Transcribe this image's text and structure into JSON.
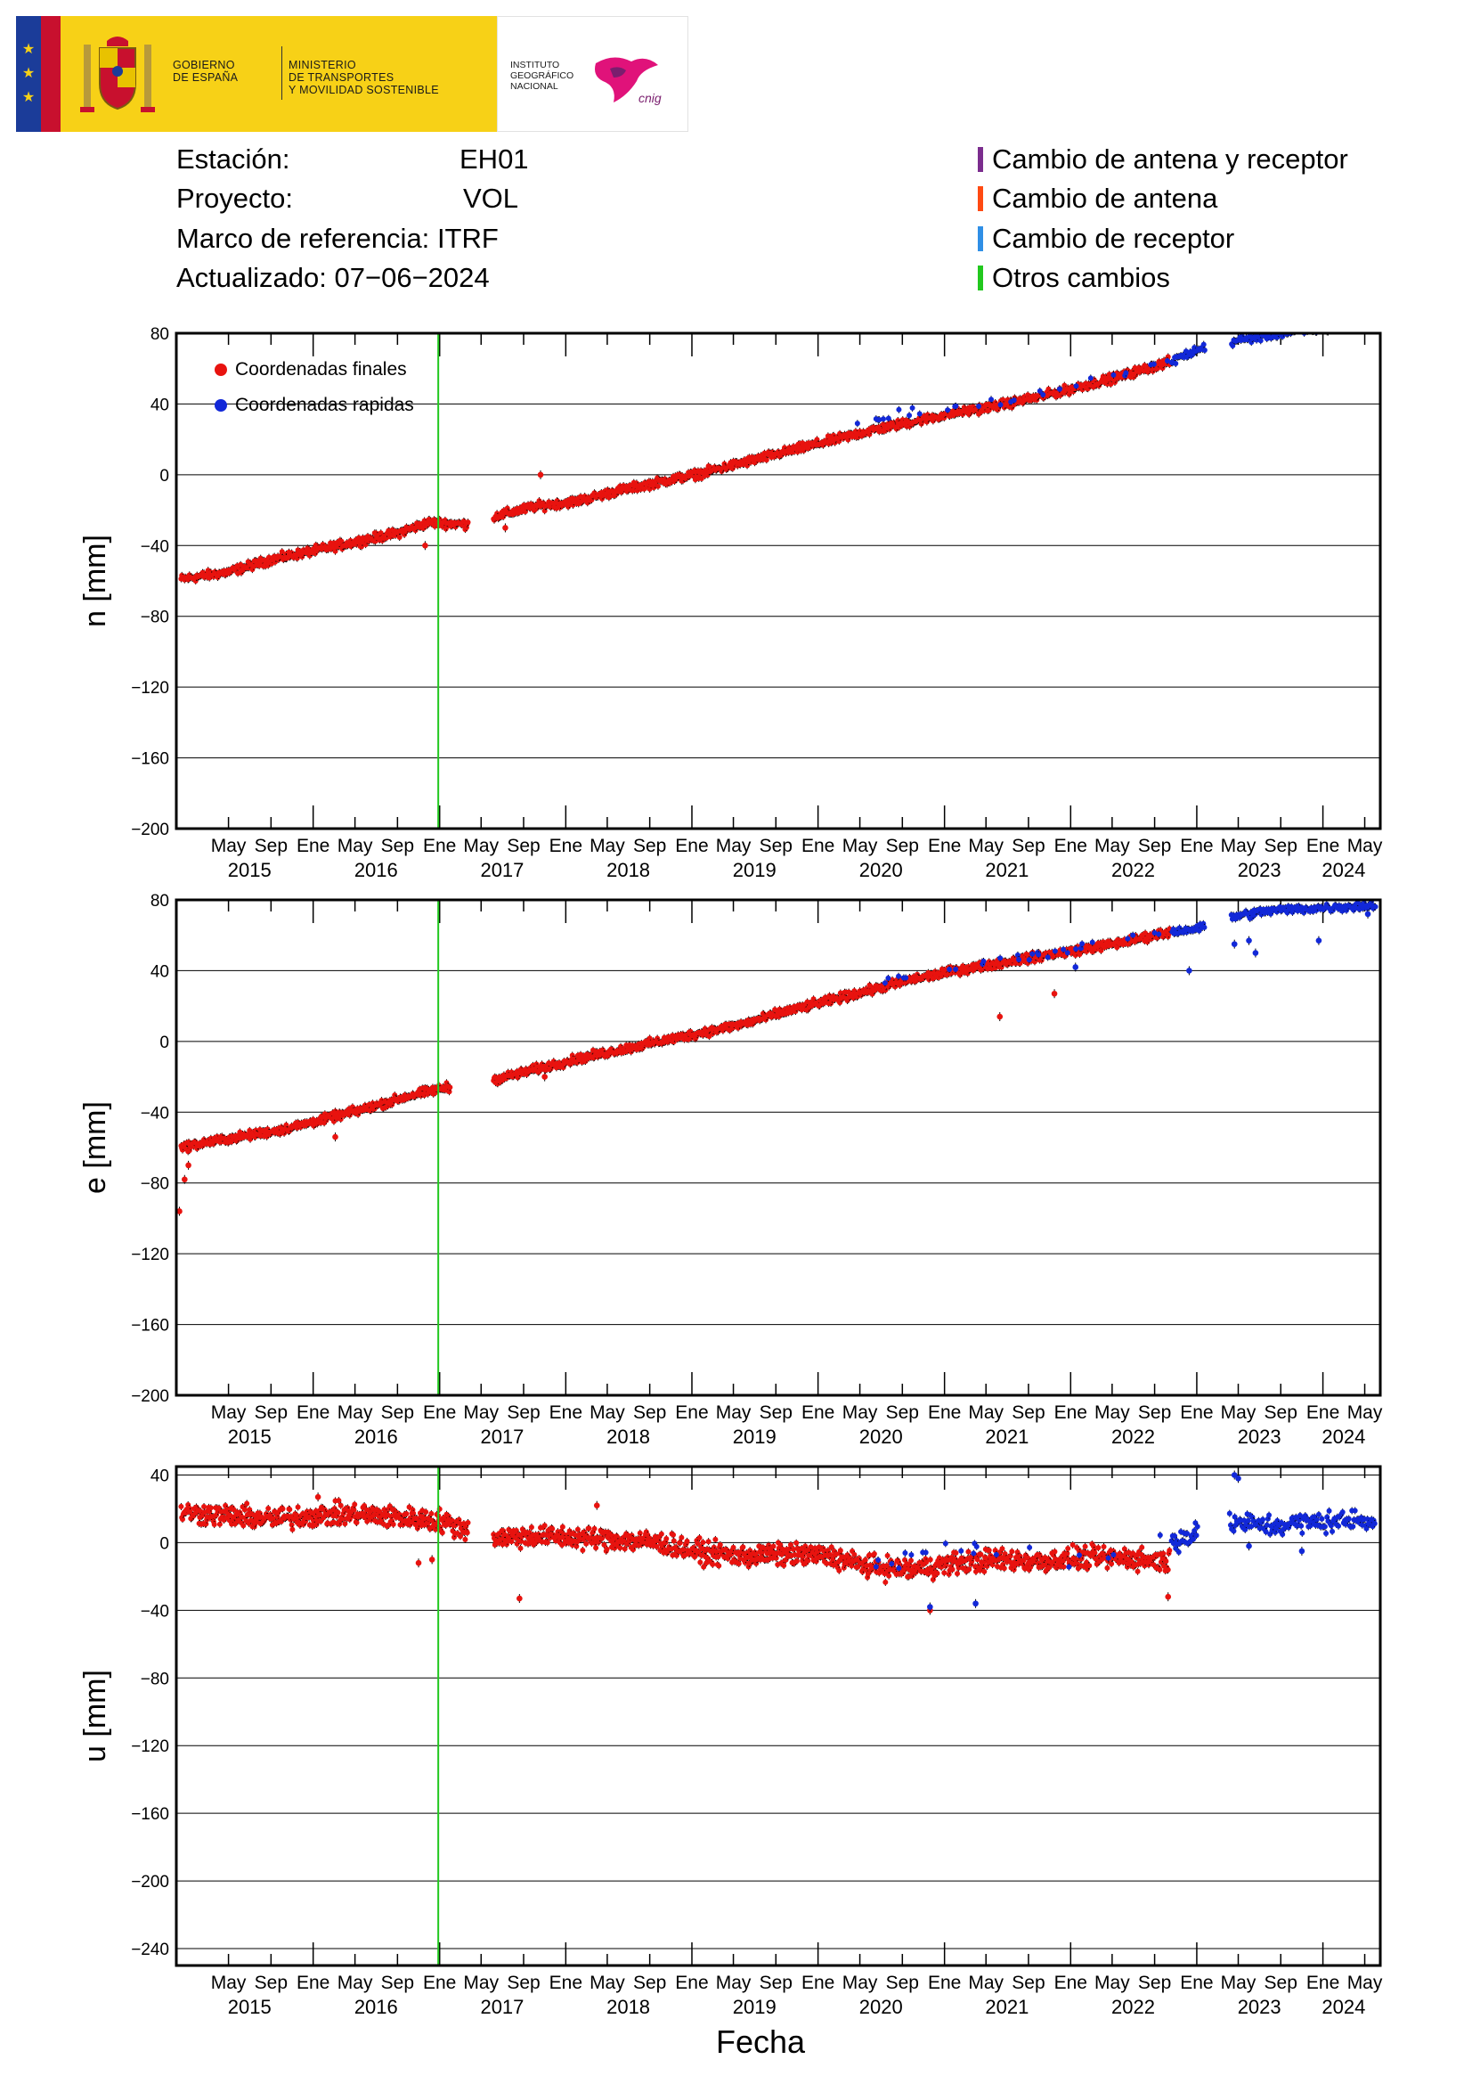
{
  "logo": {
    "gov_line1": "GOBIERNO",
    "gov_line2": "DE ESPAÑA",
    "min_line1": "MINISTERIO",
    "min_line2": "DE TRANSPORTES",
    "min_line3": "Y MOVILIDAD SOSTENIBLE",
    "ign_line1": "INSTITUTO",
    "ign_line2": "GEOGRÁFICO",
    "ign_line3": "NACIONAL",
    "ign_brand": "cnig"
  },
  "info": {
    "station_label": "Estación:",
    "station_value": "EH01",
    "project_label": "Proyecto:",
    "project_value": "VOL",
    "frame_label": "Marco de referencia:",
    "frame_value": "ITRF",
    "updated_label": "Actualizado:",
    "updated_value": "07−06−2024"
  },
  "change_legend": [
    {
      "label": "Cambio de antena y receptor",
      "color": "#7b2d8e"
    },
    {
      "label": "Cambio de antena",
      "color": "#ff4a12"
    },
    {
      "label": "Cambio de receptor",
      "color": "#2f8fe6"
    },
    {
      "label": "Otros cambios",
      "color": "#22c81e"
    }
  ],
  "colors": {
    "final": "#e8130f",
    "rapid": "#1228d8",
    "event_line": "#22c81e",
    "grid": "#000000"
  },
  "chart_data": [
    {
      "type": "scatter",
      "ylabel": "n [mm]",
      "xlabel": "",
      "ylim": [
        -200,
        80
      ],
      "yticks": [
        -200,
        -160,
        -120,
        -80,
        -40,
        0,
        40,
        80
      ],
      "xlim": [
        "2014-12-01",
        "2024-06-15"
      ],
      "legend": {
        "placement": "top-left",
        "entries": [
          "Coordenadas finales",
          "Coordenadas rapidas"
        ]
      },
      "event_lines": [
        {
          "date": "2016-12-28",
          "type": "Otros cambios"
        }
      ],
      "series": [
        {
          "name": "Coordenadas finales",
          "color": "#e8130f",
          "trend": [
            [
              "2014-12-15",
              -59
            ],
            [
              "2015-05-01",
              -55
            ],
            [
              "2015-09-01",
              -48
            ],
            [
              "2016-01-01",
              -43
            ],
            [
              "2016-05-01",
              -38
            ],
            [
              "2016-09-01",
              -33
            ],
            [
              "2016-12-01",
              -27
            ],
            [
              "2017-03-20",
              -28
            ],
            [
              "2017-06-01",
              -24
            ],
            [
              "2017-10-01",
              -18
            ],
            [
              "2018-02-01",
              -15
            ],
            [
              "2018-06-01",
              -9
            ],
            [
              "2018-10-01",
              -4
            ],
            [
              "2019-02-01",
              1
            ],
            [
              "2019-06-01",
              7
            ],
            [
              "2019-10-01",
              13
            ],
            [
              "2020-02-01",
              19
            ],
            [
              "2020-06-01",
              25
            ],
            [
              "2020-10-01",
              30
            ],
            [
              "2021-02-01",
              35
            ],
            [
              "2021-06-01",
              39
            ],
            [
              "2021-10-01",
              44
            ],
            [
              "2022-02-01",
              50
            ],
            [
              "2022-06-01",
              56
            ],
            [
              "2022-10-15",
              64
            ]
          ],
          "gaps": [
            [
              "2017-03-25",
              "2017-06-05"
            ]
          ],
          "outliers": [
            [
              "2017-10-20",
              0
            ],
            [
              "2017-07-10",
              -30
            ],
            [
              "2016-11-20",
              -40
            ],
            [
              "2015-10-15",
              -47
            ]
          ]
        },
        {
          "name": "Coordenadas rapidas",
          "color": "#1228d8",
          "trend": [
            [
              "2020-04-15",
              28
            ],
            [
              "2020-12-01",
              38
            ],
            [
              "2021-08-01",
              42
            ],
            [
              "2022-01-01",
              50
            ],
            [
              "2022-10-15",
              64
            ],
            [
              "2023-01-10",
              71
            ],
            [
              "2023-04-01",
              75
            ],
            [
              "2023-08-01",
              79
            ],
            [
              "2024-06-01",
              86
            ]
          ],
          "gaps": [
            [
              "2023-01-25",
              "2023-04-10"
            ]
          ],
          "outliers": []
        }
      ]
    },
    {
      "type": "scatter",
      "ylabel": "e [mm]",
      "xlabel": "",
      "ylim": [
        -200,
        80
      ],
      "yticks": [
        -200,
        -160,
        -120,
        -80,
        -40,
        0,
        40,
        80
      ],
      "xlim": [
        "2014-12-01",
        "2024-06-15"
      ],
      "event_lines": [
        {
          "date": "2016-12-28",
          "type": "Otros cambios"
        }
      ],
      "series": [
        {
          "name": "Coordenadas finales",
          "color": "#e8130f",
          "trend": [
            [
              "2014-12-15",
              -60
            ],
            [
              "2015-03-01",
              -57
            ],
            [
              "2015-06-01",
              -54
            ],
            [
              "2015-10-01",
              -50
            ],
            [
              "2016-02-01",
              -44
            ],
            [
              "2016-06-01",
              -38
            ],
            [
              "2016-10-01",
              -31
            ],
            [
              "2017-01-20",
              -26
            ],
            [
              "2017-03-20",
              -25
            ],
            [
              "2017-06-01",
              -22
            ],
            [
              "2017-10-01",
              -16
            ],
            [
              "2018-02-01",
              -10
            ],
            [
              "2018-06-01",
              -5
            ],
            [
              "2018-10-01",
              0
            ],
            [
              "2019-02-01",
              5
            ],
            [
              "2019-06-01",
              10
            ],
            [
              "2019-10-01",
              17
            ],
            [
              "2020-02-01",
              23
            ],
            [
              "2020-06-01",
              29
            ],
            [
              "2020-10-01",
              35
            ],
            [
              "2021-02-01",
              40
            ],
            [
              "2021-06-01",
              44
            ],
            [
              "2021-10-01",
              48
            ],
            [
              "2022-02-01",
              52
            ],
            [
              "2022-06-01",
              56
            ],
            [
              "2022-10-15",
              62
            ]
          ],
          "gaps": [
            [
              "2017-02-01",
              "2017-06-05"
            ]
          ],
          "outliers": [
            [
              "2014-12-10",
              -96
            ],
            [
              "2014-12-25",
              -78
            ],
            [
              "2015-01-05",
              -70
            ],
            [
              "2021-06-10",
              14
            ],
            [
              "2021-11-15",
              27
            ],
            [
              "2017-11-01",
              -20
            ],
            [
              "2016-03-05",
              -54
            ]
          ]
        },
        {
          "name": "Coordenadas rapidas",
          "color": "#1228d8",
          "trend": [
            [
              "2020-06-01",
              32
            ],
            [
              "2021-05-01",
              44
            ],
            [
              "2022-01-01",
              52
            ],
            [
              "2022-10-15",
              62
            ],
            [
              "2023-01-10",
              64
            ],
            [
              "2023-04-01",
              70
            ],
            [
              "2023-08-01",
              74
            ],
            [
              "2024-06-01",
              77
            ]
          ],
          "gaps": [
            [
              "2023-01-25",
              "2023-04-10"
            ]
          ],
          "outliers": [
            [
              "2022-12-10",
              40
            ],
            [
              "2023-06-20",
              50
            ],
            [
              "2023-06-01",
              57
            ],
            [
              "2023-12-20",
              57
            ],
            [
              "2023-04-20",
              55
            ],
            [
              "2024-05-10",
              72
            ],
            [
              "2022-01-15",
              42
            ]
          ]
        }
      ]
    },
    {
      "type": "scatter",
      "ylabel": "u [mm]",
      "xlabel": "Fecha",
      "ylim": [
        -250,
        45
      ],
      "yticks": [
        -240,
        -200,
        -160,
        -120,
        -80,
        -40,
        0,
        40
      ],
      "xlim": [
        "2014-12-01",
        "2024-06-15"
      ],
      "event_lines": [
        {
          "date": "2016-12-28",
          "type": "Otros cambios"
        }
      ],
      "series": [
        {
          "name": "Coordenadas finales",
          "color": "#e8130f",
          "trend": [
            [
              "2014-12-15",
              18
            ],
            [
              "2015-05-01",
              16
            ],
            [
              "2015-09-01",
              14
            ],
            [
              "2016-01-01",
              16
            ],
            [
              "2016-05-01",
              17
            ],
            [
              "2016-09-01",
              15
            ],
            [
              "2017-01-01",
              13
            ],
            [
              "2017-03-20",
              8
            ],
            [
              "2017-06-01",
              3
            ],
            [
              "2017-10-01",
              4
            ],
            [
              "2018-02-01",
              3
            ],
            [
              "2018-06-01",
              2
            ],
            [
              "2018-10-01",
              0
            ],
            [
              "2019-02-01",
              -6
            ],
            [
              "2019-06-01",
              -8
            ],
            [
              "2019-10-01",
              -7
            ],
            [
              "2020-02-01",
              -8
            ],
            [
              "2020-06-01",
              -14
            ],
            [
              "2020-10-01",
              -16
            ],
            [
              "2021-02-01",
              -12
            ],
            [
              "2021-06-01",
              -10
            ],
            [
              "2021-10-01",
              -11
            ],
            [
              "2022-02-01",
              -9
            ],
            [
              "2022-06-01",
              -9
            ],
            [
              "2022-10-15",
              -11
            ]
          ],
          "gaps": [
            [
              "2017-03-25",
              "2017-06-05"
            ]
          ],
          "outliers": [
            [
              "2017-08-20",
              -33
            ],
            [
              "2016-11-01",
              -12
            ],
            [
              "2016-12-10",
              -10
            ],
            [
              "2020-11-20",
              -40
            ],
            [
              "2022-10-10",
              -32
            ],
            [
              "2018-04-01",
              22
            ],
            [
              "2016-01-15",
              27
            ]
          ]
        },
        {
          "name": "Coordenadas rapidas",
          "color": "#1228d8",
          "trend": [
            [
              "2020-04-15",
              -14
            ],
            [
              "2021-03-01",
              -4
            ],
            [
              "2021-10-01",
              -8
            ],
            [
              "2022-05-01",
              -6
            ],
            [
              "2022-12-15",
              4
            ],
            [
              "2023-04-01",
              12
            ],
            [
              "2023-08-01",
              10
            ],
            [
              "2023-12-01",
              12
            ],
            [
              "2024-06-01",
              14
            ]
          ],
          "gaps": [
            [
              "2023-01-05",
              "2023-04-05"
            ]
          ],
          "outliers": [
            [
              "2023-04-20",
              40
            ],
            [
              "2023-05-01",
              38
            ],
            [
              "2020-11-20",
              -38
            ],
            [
              "2021-04-01",
              -36
            ],
            [
              "2023-11-01",
              -5
            ],
            [
              "2023-06-01",
              -2
            ]
          ]
        }
      ]
    }
  ],
  "x_axis_labels": {
    "month_ticks": [
      {
        "date": "2015-05-01",
        "label": "May"
      },
      {
        "date": "2015-09-01",
        "label": "Sep"
      },
      {
        "date": "2016-01-01",
        "label": "Ene"
      },
      {
        "date": "2016-05-01",
        "label": "May"
      },
      {
        "date": "2016-09-01",
        "label": "Sep"
      },
      {
        "date": "2017-01-01",
        "label": "Ene"
      },
      {
        "date": "2017-05-01",
        "label": "May"
      },
      {
        "date": "2017-09-01",
        "label": "Sep"
      },
      {
        "date": "2018-01-01",
        "label": "Ene"
      },
      {
        "date": "2018-05-01",
        "label": "May"
      },
      {
        "date": "2018-09-01",
        "label": "Sep"
      },
      {
        "date": "2019-01-01",
        "label": "Ene"
      },
      {
        "date": "2019-05-01",
        "label": "May"
      },
      {
        "date": "2019-09-01",
        "label": "Sep"
      },
      {
        "date": "2020-01-01",
        "label": "Ene"
      },
      {
        "date": "2020-05-01",
        "label": "May"
      },
      {
        "date": "2020-09-01",
        "label": "Sep"
      },
      {
        "date": "2021-01-01",
        "label": "Ene"
      },
      {
        "date": "2021-05-01",
        "label": "May"
      },
      {
        "date": "2021-09-01",
        "label": "Sep"
      },
      {
        "date": "2022-01-01",
        "label": "Ene"
      },
      {
        "date": "2022-05-01",
        "label": "May"
      },
      {
        "date": "2022-09-01",
        "label": "Sep"
      },
      {
        "date": "2023-01-01",
        "label": "Ene"
      },
      {
        "date": "2023-05-01",
        "label": "May"
      },
      {
        "date": "2023-09-01",
        "label": "Sep"
      },
      {
        "date": "2024-01-01",
        "label": "Ene"
      },
      {
        "date": "2024-05-01",
        "label": "May"
      }
    ],
    "year_labels": [
      {
        "date": "2015-07-01",
        "label": "2015"
      },
      {
        "date": "2016-07-01",
        "label": "2016"
      },
      {
        "date": "2017-07-01",
        "label": "2017"
      },
      {
        "date": "2018-07-01",
        "label": "2018"
      },
      {
        "date": "2019-07-01",
        "label": "2019"
      },
      {
        "date": "2020-07-01",
        "label": "2020"
      },
      {
        "date": "2021-07-01",
        "label": "2021"
      },
      {
        "date": "2022-07-01",
        "label": "2022"
      },
      {
        "date": "2023-07-01",
        "label": "2023"
      },
      {
        "date": "2024-03-01",
        "label": "2024"
      }
    ]
  }
}
